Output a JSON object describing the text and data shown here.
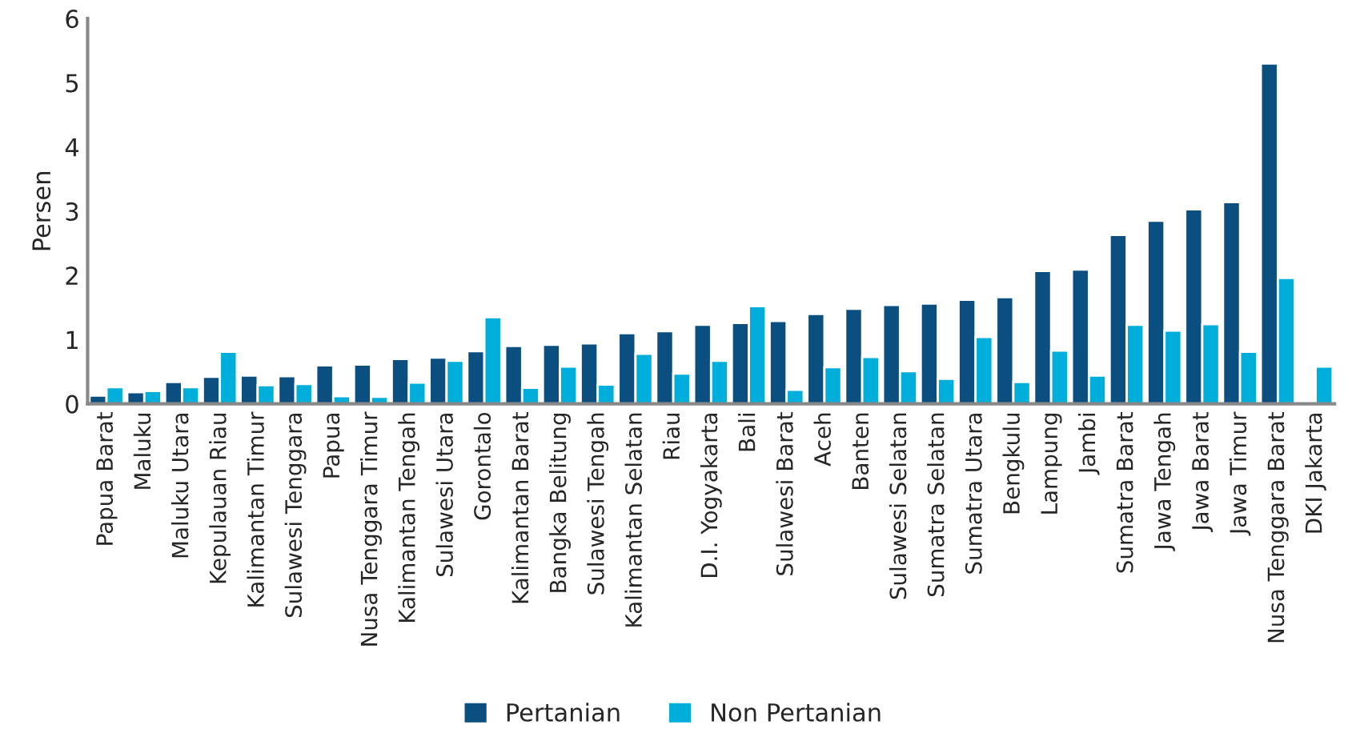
{
  "chart_data": {
    "type": "bar",
    "ylabel": "Persen",
    "categories": [
      "Papua Barat",
      "Maluku",
      "Maluku Utara",
      "Kepulauan Riau",
      "Kalimantan Timur",
      "Sulawesi Tenggara",
      "Papua",
      "Nusa Tenggara Timur",
      "Kalimantan Tengah",
      "Sulawesi Utara",
      "Gorontalo",
      "Kalimantan Barat",
      "Bangka Belitung",
      "Sulawesi Tengah",
      "Kalimantan Selatan",
      "Riau",
      "D.I. Yogyakarta",
      "Bali",
      "Sulawesi Barat",
      "Aceh",
      "Banten",
      "Sulawesi Selatan",
      "Sumatra Selatan",
      "Sumatra Utara",
      "Bengkulu",
      "Lampung",
      "Jambi",
      "Sumatra Barat",
      "Jawa Tengah",
      "Jawa Barat",
      "Jawa Timur",
      "Nusa Tenggara Barat",
      "DKI Jakarta"
    ],
    "series": [
      {
        "name": "Pertanian",
        "color": "#0a4f7f",
        "values": [
          0.13,
          0.18,
          0.34,
          0.42,
          0.44,
          0.43,
          0.6,
          0.61,
          0.7,
          0.72,
          0.82,
          0.9,
          0.92,
          0.94,
          1.1,
          1.13,
          1.23,
          1.26,
          1.29,
          1.4,
          1.48,
          1.54,
          1.56,
          1.62,
          1.66,
          2.07,
          2.09,
          2.63,
          2.85,
          3.03,
          3.14,
          5.3,
          null
        ]
      },
      {
        "name": "Non Pertanian",
        "color": "#00aedb",
        "values": [
          0.26,
          0.2,
          0.26,
          0.81,
          0.29,
          0.31,
          0.12,
          0.11,
          0.33,
          0.67,
          1.35,
          0.25,
          0.58,
          0.3,
          0.78,
          0.47,
          0.67,
          1.52,
          0.22,
          0.57,
          0.73,
          0.51,
          0.39,
          1.04,
          0.34,
          0.83,
          0.44,
          1.23,
          1.14,
          1.24,
          0.81,
          1.96,
          0.58
        ]
      }
    ],
    "ylim": [
      0,
      6
    ],
    "yticks": [
      0,
      1,
      2,
      3,
      4,
      5,
      6
    ],
    "grid": false,
    "legend": "bottom"
  }
}
